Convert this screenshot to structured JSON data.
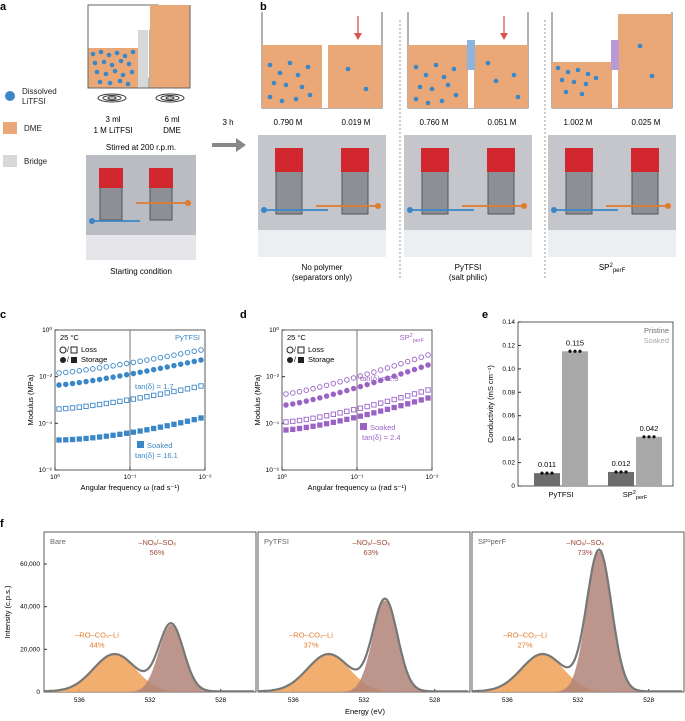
{
  "panel_labels": {
    "a": "a",
    "b": "b",
    "c": "c",
    "d": "d",
    "e": "e",
    "f": "f"
  },
  "panel_a": {
    "legend": {
      "dissolved": "Dissolved",
      "dissolved2": "LiTFSI",
      "dme": "DME",
      "bridge": "Bridge"
    },
    "left_vol": "3 ml",
    "left_sol": "1 M LiTFSI",
    "right_vol": "6 ml",
    "right_sol": "DME",
    "stir": "Stirred at 200 r.p.m.",
    "caption": "Starting condition",
    "arrow": "3 h"
  },
  "panel_b": {
    "cells": [
      {
        "left_conc": "0.790 M",
        "right_conc": "0.019 M",
        "caption1": "No polymer",
        "caption2": "(separators only)"
      },
      {
        "left_conc": "0.760 M",
        "right_conc": "0.051 M",
        "caption1": "PyTFSI",
        "caption2": "(salt philic)"
      },
      {
        "left_conc": "1.002 M",
        "right_conc": "0.025 M",
        "caption1": "SP",
        "caption1_sup": "2",
        "caption1_sub": "perF",
        "caption2": ""
      }
    ]
  },
  "panel_c": {
    "temp": "25 °C",
    "loss": "Loss",
    "storage": "Storage",
    "tag": "PyTFSI",
    "tan1": "tan(δ) = 1.7",
    "soaked": "Soaked",
    "tan2": "tan(δ) = 16.1",
    "ylabel": "Modulus (MPa)",
    "xlabel": "Angular frequency ω (rad s⁻¹)",
    "xticks": [
      "10⁰",
      "10⁻¹",
      "10⁻²"
    ],
    "yticks": [
      "10⁰",
      "10⁻²",
      "10⁻⁴",
      "10⁻⁶"
    ]
  },
  "panel_d": {
    "temp": "25 °C",
    "loss": "Loss",
    "storage": "Storage",
    "tag": "SP",
    "tag_sup": "2",
    "tag_sub": "perF",
    "tan1": "tan(δ) = 2.3",
    "soaked": "Soaked",
    "tan2": "tan(δ) = 2.4",
    "ylabel": "Modulus (MPa)",
    "xlabel": "Angular frequency ω (rad s⁻¹)",
    "xticks": [
      "10⁰",
      "10⁻¹",
      "10⁻²"
    ],
    "yticks": [
      "10⁰",
      "10⁻²",
      "10⁻⁴",
      "10⁻⁶"
    ]
  },
  "panel_e": {
    "ylabel": "Conductivity (mS cm⁻¹)",
    "yticks": [
      "0",
      "0.02",
      "0.04",
      "0.06",
      "0.08",
      "0.10",
      "0.12",
      "0.14"
    ],
    "legend": [
      "Pristine",
      "Soaked"
    ],
    "colors": {
      "pristine": "#6d6d6d",
      "soaked": "#a9a9a9"
    }
  },
  "panel_f": {
    "ylabel": "Intensity (c.p.s.)",
    "xlabel": "Energy (eV)",
    "yticks": [
      "0",
      "20,000",
      "40,000",
      "60,000"
    ],
    "xticks": [
      "536",
      "532",
      "528"
    ],
    "subpanels": [
      {
        "name": "Bare",
        "no_label": "–NOₓ/–SOₓ",
        "no_pct": "56%",
        "ro_label": "–RO–CO₂–Li",
        "ro_pct": "44%"
      },
      {
        "name": "PyTFSI",
        "no_label": "–NOₓ/–SOₓ",
        "no_pct": "63%",
        "ro_label": "–RO–CO₂–Li",
        "ro_pct": "37%"
      },
      {
        "name": "SP²perF",
        "no_label": "–NOₓ/–SOₓ",
        "no_pct": "73%",
        "ro_label": "–RO–CO₂–Li",
        "ro_pct": "27%"
      }
    ]
  },
  "chart_data": [
    {
      "type": "scatter",
      "title": "",
      "xlabel": "Angular frequency ω (rad s⁻¹)",
      "ylabel": "Modulus (MPa)",
      "x_scale": "log",
      "y_scale": "log",
      "xlim": [
        1,
        0.01
      ],
      "ylim": [
        1e-06,
        1
      ],
      "series": [
        {
          "name": "Loss",
          "x": [
            1,
            0.6,
            0.35,
            0.2,
            0.1,
            0.06,
            0.035,
            0.02,
            0.01
          ],
          "values": [
            0.002,
            0.003,
            0.004,
            0.006,
            0.009,
            0.015,
            0.025,
            0.04,
            0.07
          ]
        },
        {
          "name": "Storage",
          "x": [
            1,
            0.6,
            0.35,
            0.2,
            0.1,
            0.06,
            0.035,
            0.02,
            0.01
          ],
          "values": [
            0.0012,
            0.0018,
            0.0025,
            0.004,
            0.006,
            0.01,
            0.018,
            0.03,
            0.05
          ]
        },
        {
          "name": "Soaked",
          "x": [
            1,
            0.6,
            0.35,
            0.2,
            0.1,
            0.06,
            0.035,
            0.02,
            0.01
          ],
          "values": [
            0.00012,
            0.00018,
            0.00028,
            0.0005,
            0.0008,
            0.0014,
            0.0025,
            0.005,
            0.012
          ]
        },
        {
          "name": "Soaked",
          "x": [
            1,
            0.6,
            0.35,
            0.2,
            0.1,
            0.06,
            0.035,
            0.02,
            0.01
          ],
          "values": [
            1.2e-05,
            1.4e-05,
            1.7e-05,
            2.2e-05,
            3e-05,
            5e-05,
            8e-05,
            0.00014,
            0.0002
          ]
        }
      ]
    },
    {
      "type": "bar",
      "categories": [
        "PyTFSI",
        "SP²perF"
      ],
      "series": [
        {
          "name": "Pristine",
          "values": [
            0.011,
            0.012
          ]
        },
        {
          "name": "Soaked",
          "values": [
            0.115,
            0.042
          ]
        }
      ],
      "ylabel": "Conductivity (mS cm⁻¹)",
      "ylim": [
        0,
        0.14
      ]
    }
  ]
}
